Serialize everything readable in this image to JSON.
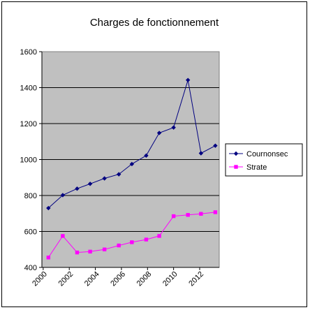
{
  "chart_data": {
    "type": "line",
    "title": "Charges de fonctionnement",
    "xlabel": "",
    "ylabel": "",
    "x_tick_labels": [
      "2000",
      "2002",
      "2004",
      "2006",
      "2008",
      "2010",
      "2012"
    ],
    "x_tick_values": [
      2000,
      2002,
      2004,
      2006,
      2008,
      2010,
      2012
    ],
    "ylim": [
      400,
      1600
    ],
    "y_ticks": [
      400,
      600,
      800,
      1000,
      1200,
      1400,
      1600
    ],
    "x": [
      2000.4,
      2001.5,
      2002.6,
      2003.6,
      2004.7,
      2005.8,
      2006.8,
      2007.9,
      2008.9,
      2010.0,
      2011.1,
      2012.1,
      2013.2
    ],
    "grid": "horizontal",
    "plot_background": "#c0c0c0",
    "legend_position": "right",
    "series": [
      {
        "name": "Cournonsec",
        "color": "#000080",
        "marker": "diamond",
        "values": [
          730,
          802,
          838,
          865,
          895,
          918,
          975,
          1022,
          1148,
          1178,
          1442,
          1035,
          1077
        ]
      },
      {
        "name": "Strate",
        "color": "#ff00ff",
        "marker": "square",
        "values": [
          455,
          575,
          483,
          488,
          500,
          522,
          540,
          555,
          575,
          685,
          692,
          698,
          707
        ]
      }
    ]
  }
}
